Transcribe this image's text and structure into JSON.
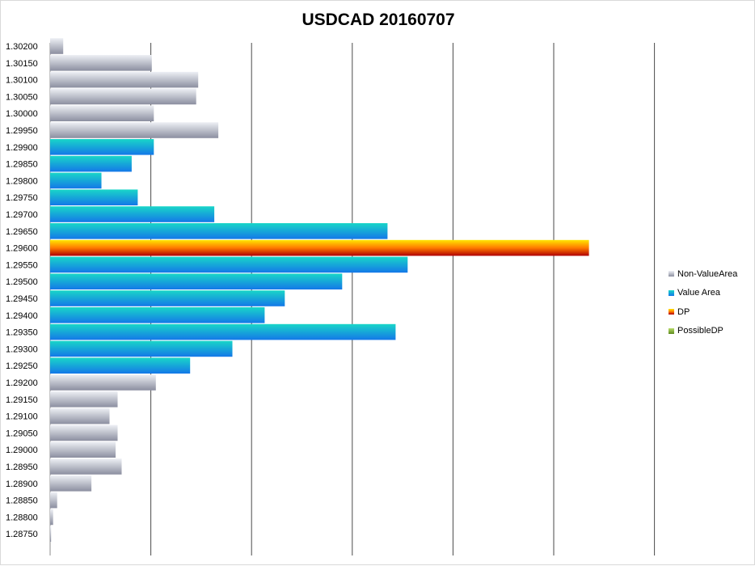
{
  "chart_data": {
    "type": "bar",
    "orientation": "horizontal",
    "title": "USDCAD 20160707",
    "xlim": [
      0,
      700
    ],
    "x_gridlines": [
      0,
      100,
      200,
      300,
      400,
      500,
      600
    ],
    "grid": true,
    "legend_position": "right",
    "categories": [
      "1.30200",
      "1.30150",
      "1.30100",
      "1.30050",
      "1.30000",
      "1.29950",
      "1.29900",
      "1.29850",
      "1.29800",
      "1.29750",
      "1.29700",
      "1.29650",
      "1.29600",
      "1.29550",
      "1.29500",
      "1.29450",
      "1.29400",
      "1.29350",
      "1.29300",
      "1.29250",
      "1.29200",
      "1.29150",
      "1.29100",
      "1.29050",
      "1.29000",
      "1.28950",
      "1.28900",
      "1.28850",
      "1.28800",
      "1.28750"
    ],
    "values": [
      13,
      101,
      147,
      145,
      103,
      167,
      103,
      81,
      51,
      87,
      163,
      335,
      535,
      355,
      290,
      233,
      213,
      343,
      181,
      139,
      105,
      67,
      59,
      67,
      65,
      71,
      41,
      7,
      3,
      1
    ],
    "classes": [
      "Non-ValueArea",
      "Non-ValueArea",
      "Non-ValueArea",
      "Non-ValueArea",
      "Non-ValueArea",
      "Non-ValueArea",
      "Value Area",
      "Value Area",
      "Value Area",
      "Value Area",
      "Value Area",
      "Value Area",
      "DP",
      "Value Area",
      "Value Area",
      "Value Area",
      "Value Area",
      "Value Area",
      "Value Area",
      "Value Area",
      "Non-ValueArea",
      "Non-ValueArea",
      "Non-ValueArea",
      "Non-ValueArea",
      "Non-ValueArea",
      "Non-ValueArea",
      "Non-ValueArea",
      "Non-ValueArea",
      "Non-ValueArea",
      "Non-ValueArea"
    ],
    "series": [
      {
        "name": "Non-ValueArea",
        "colors": [
          "#eef0f5",
          "#8c8fa0"
        ]
      },
      {
        "name": "Value Area",
        "colors": [
          "#19d6c8",
          "#1478e8"
        ]
      },
      {
        "name": "DP",
        "colors": [
          "#ffe600",
          "#ff7a00",
          "#b00000"
        ]
      },
      {
        "name": "PossibleDP",
        "colors": [
          "#b8dc6a",
          "#5e8a1e"
        ]
      }
    ]
  }
}
